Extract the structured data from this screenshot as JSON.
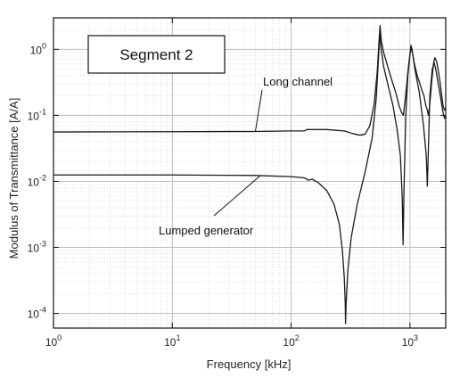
{
  "chart_data": {
    "type": "line",
    "title": "",
    "xlabel": "Frequency [kHz]",
    "ylabel": "Modulus of Transmittance [A/A]",
    "x_scale": "log",
    "y_scale": "log",
    "xlim": [
      1,
      2000
    ],
    "ylim": [
      6e-05,
      3
    ],
    "grid": true,
    "legend": "none",
    "inset_label": "Segment 2",
    "x_ticks": [
      {
        "value": 1,
        "base": "10",
        "exp": "0"
      },
      {
        "value": 10,
        "base": "10",
        "exp": "1"
      },
      {
        "value": 100,
        "base": "10",
        "exp": "2"
      },
      {
        "value": 1000,
        "base": "10",
        "exp": "3"
      }
    ],
    "y_ticks": [
      {
        "value": 0.0001,
        "base": "10",
        "exp": "-4"
      },
      {
        "value": 0.001,
        "base": "10",
        "exp": "-3"
      },
      {
        "value": 0.01,
        "base": "10",
        "exp": "-2"
      },
      {
        "value": 0.1,
        "base": "10",
        "exp": "-1"
      },
      {
        "value": 1,
        "base": "10",
        "exp": "0"
      }
    ],
    "annotations": [
      {
        "text": "Long channel",
        "series": 0,
        "at_x": 50
      },
      {
        "text": "Lumped generator",
        "series": 1,
        "at_x": 55
      }
    ],
    "series": [
      {
        "color": "#1a1a1a",
        "points": [
          [
            1,
            0.056
          ],
          [
            10,
            0.0565
          ],
          [
            50,
            0.057
          ],
          [
            100,
            0.058
          ],
          [
            130,
            0.058
          ],
          [
            135,
            0.061
          ],
          [
            200,
            0.061
          ],
          [
            280,
            0.058
          ],
          [
            330,
            0.053
          ],
          [
            380,
            0.05
          ],
          [
            420,
            0.052
          ],
          [
            460,
            0.07
          ],
          [
            500,
            0.15
          ],
          [
            530,
            0.45
          ],
          [
            550,
            1.4
          ],
          [
            560,
            2.3
          ],
          [
            575,
            1.3
          ],
          [
            600,
            0.9
          ],
          [
            650,
            0.55
          ],
          [
            700,
            0.35
          ],
          [
            760,
            0.22
          ],
          [
            810,
            0.14
          ],
          [
            850,
            0.11
          ],
          [
            880,
            0.1
          ],
          [
            920,
            0.2
          ],
          [
            960,
            0.45
          ],
          [
            1000,
            0.85
          ],
          [
            1020,
            1.15
          ],
          [
            1040,
            1.0
          ],
          [
            1080,
            0.65
          ],
          [
            1150,
            0.4
          ],
          [
            1200,
            0.32
          ],
          [
            1260,
            0.24
          ],
          [
            1310,
            0.2
          ],
          [
            1360,
            0.14
          ],
          [
            1400,
            0.12
          ],
          [
            1430,
            0.1
          ],
          [
            1470,
            0.15
          ],
          [
            1530,
            0.35
          ],
          [
            1580,
            0.62
          ],
          [
            1620,
            0.75
          ],
          [
            1680,
            0.65
          ],
          [
            1740,
            0.45
          ],
          [
            1800,
            0.3
          ],
          [
            1850,
            0.2
          ],
          [
            1900,
            0.14
          ],
          [
            1950,
            0.12
          ],
          [
            2000,
            0.13
          ]
        ]
      },
      {
        "color": "#1a1a1a",
        "points": [
          [
            1,
            0.0125
          ],
          [
            10,
            0.0125
          ],
          [
            50,
            0.0123
          ],
          [
            100,
            0.0118
          ],
          [
            130,
            0.0113
          ],
          [
            140,
            0.0104
          ],
          [
            150,
            0.0108
          ],
          [
            170,
            0.0095
          ],
          [
            200,
            0.0072
          ],
          [
            230,
            0.0045
          ],
          [
            255,
            0.0022
          ],
          [
            270,
            0.0009
          ],
          [
            280,
            0.00035
          ],
          [
            285,
            0.00015
          ],
          [
            287,
            7e-05
          ],
          [
            290,
            0.00014
          ],
          [
            300,
            0.00045
          ],
          [
            320,
            0.0014
          ],
          [
            360,
            0.0045
          ],
          [
            420,
            0.014
          ],
          [
            480,
            0.045
          ],
          [
            520,
            0.18
          ],
          [
            545,
            0.8
          ],
          [
            558,
            1.9
          ],
          [
            570,
            1.05
          ],
          [
            600,
            0.55
          ],
          [
            650,
            0.3
          ],
          [
            720,
            0.14
          ],
          [
            780,
            0.06
          ],
          [
            830,
            0.025
          ],
          [
            860,
            0.006
          ],
          [
            875,
            0.0011
          ],
          [
            890,
            0.007
          ],
          [
            920,
            0.09
          ],
          [
            960,
            0.4
          ],
          [
            1000,
            0.85
          ],
          [
            1030,
            1.05
          ],
          [
            1060,
            0.8
          ],
          [
            1100,
            0.5
          ],
          [
            1200,
            0.22
          ],
          [
            1300,
            0.07
          ],
          [
            1370,
            0.025
          ],
          [
            1400,
            0.0085
          ],
          [
            1420,
            0.02
          ],
          [
            1470,
            0.2
          ],
          [
            1540,
            0.5
          ],
          [
            1600,
            0.62
          ],
          [
            1650,
            0.5
          ],
          [
            1720,
            0.32
          ],
          [
            1800,
            0.2
          ],
          [
            1880,
            0.12
          ],
          [
            1950,
            0.09
          ],
          [
            2000,
            0.1
          ]
        ]
      }
    ]
  }
}
